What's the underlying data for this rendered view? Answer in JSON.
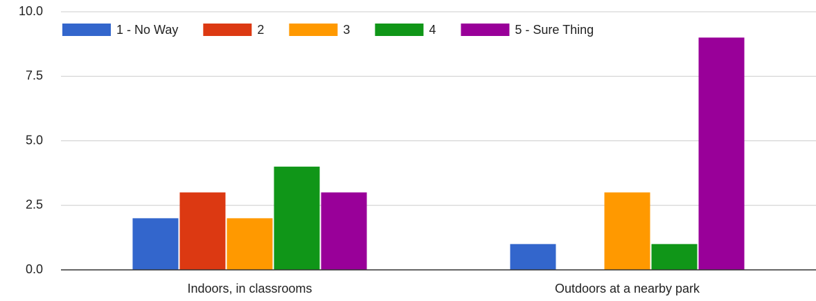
{
  "chart_data": {
    "type": "bar",
    "categories": [
      "Indoors, in classrooms",
      "Outdoors at a nearby park"
    ],
    "series": [
      {
        "name": "1 - No Way",
        "color": "#3366cc",
        "values": [
          2,
          1
        ]
      },
      {
        "name": "2",
        "color": "#dc3912",
        "values": [
          3,
          0
        ]
      },
      {
        "name": "3",
        "color": "#ff9900",
        "values": [
          2,
          3
        ]
      },
      {
        "name": "4",
        "color": "#109618",
        "values": [
          4,
          1
        ]
      },
      {
        "name": "5 - Sure Thing",
        "color": "#990099",
        "values": [
          3,
          9
        ]
      }
    ],
    "ylim": [
      0,
      10
    ],
    "yticks": [
      {
        "value": 0,
        "label": "0.0"
      },
      2.5,
      {
        "value": 5,
        "label": "5.0"
      },
      7.5,
      {
        "value": 10,
        "label": "10.0"
      }
    ],
    "grid": true,
    "legend": "top"
  }
}
